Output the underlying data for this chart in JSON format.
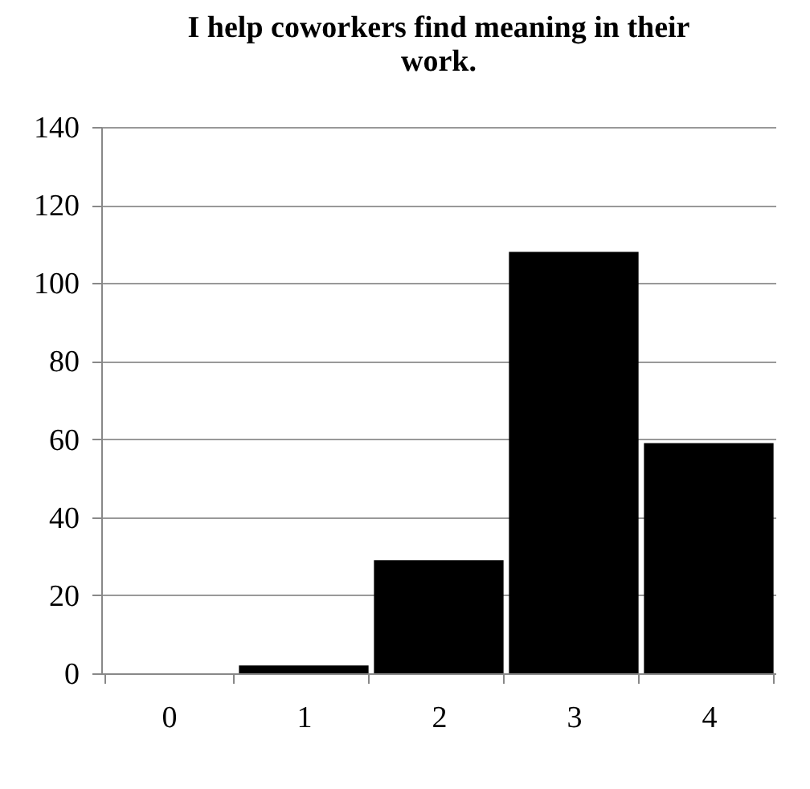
{
  "chart_data": {
    "type": "bar",
    "title": "I help coworkers find meaning in their work.",
    "categories": [
      "0",
      "1",
      "2",
      "3",
      "4"
    ],
    "values": [
      0,
      2,
      29,
      108,
      59
    ],
    "color": "#000000",
    "ylim": [
      0,
      140
    ],
    "yticks": [
      0,
      20,
      40,
      60,
      80,
      100,
      120,
      140
    ],
    "grid": "y"
  }
}
